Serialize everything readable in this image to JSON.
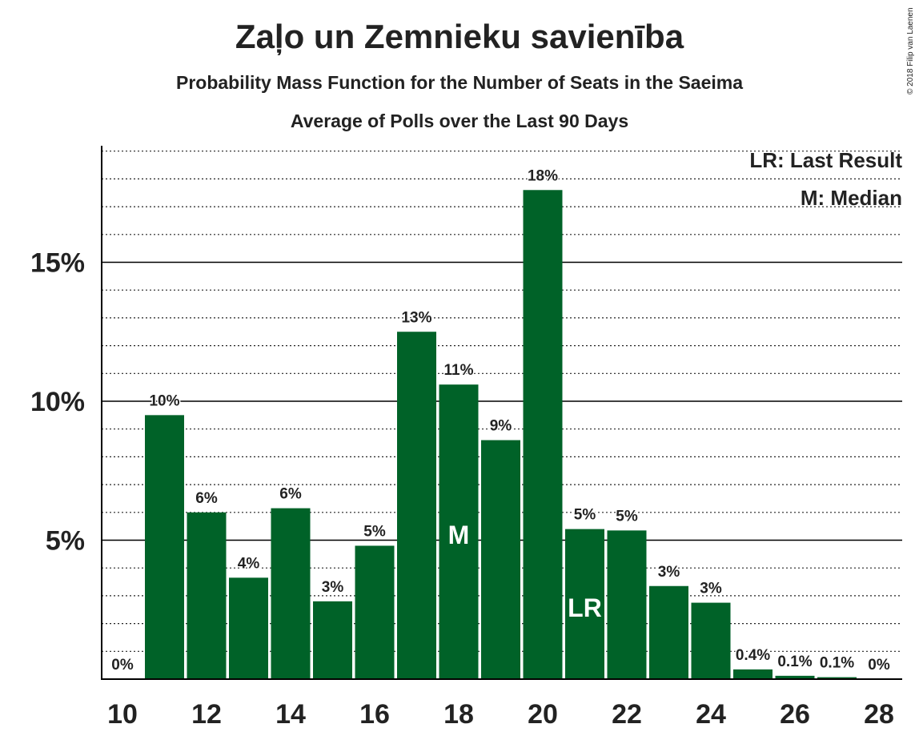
{
  "chart_data": {
    "type": "bar",
    "title": "Zaļo un Zemnieku savienība",
    "subtitle": "Probability Mass Function for the Number of Seats in the Saeima",
    "subtitle2": "Average of Polls over the Last 90 Days",
    "copyright": "© 2018 Filip van Laenen",
    "x": [
      10,
      11,
      12,
      13,
      14,
      15,
      16,
      17,
      18,
      19,
      20,
      21,
      22,
      23,
      24,
      25,
      26,
      27,
      28
    ],
    "values": [
      0,
      9.5,
      6.0,
      3.65,
      6.15,
      2.8,
      4.8,
      12.5,
      10.6,
      8.6,
      17.6,
      5.4,
      5.35,
      3.35,
      2.75,
      0.35,
      0.12,
      0.07,
      0
    ],
    "value_labels": [
      "0%",
      "10%",
      "6%",
      "4%",
      "6%",
      "3%",
      "5%",
      "13%",
      "11%",
      "9%",
      "18%",
      "5%",
      "5%",
      "3%",
      "3%",
      "0.4%",
      "0.1%",
      "0.1%",
      "0%"
    ],
    "x_tick_labels": [
      "10",
      "12",
      "14",
      "16",
      "18",
      "20",
      "22",
      "24",
      "26",
      "28"
    ],
    "y_tick_labels": [
      "5%",
      "10%",
      "15%"
    ],
    "y_ticks": [
      5,
      10,
      15
    ],
    "ylim": [
      0,
      19.2
    ],
    "median_seat": 18,
    "median_marker": "M",
    "last_result_seat": 21,
    "last_result_marker": "LR",
    "legend": [
      "LR: Last Result",
      "M: Median"
    ],
    "legend_placement": "top-right",
    "bar_color": "#006228",
    "grid": true
  }
}
